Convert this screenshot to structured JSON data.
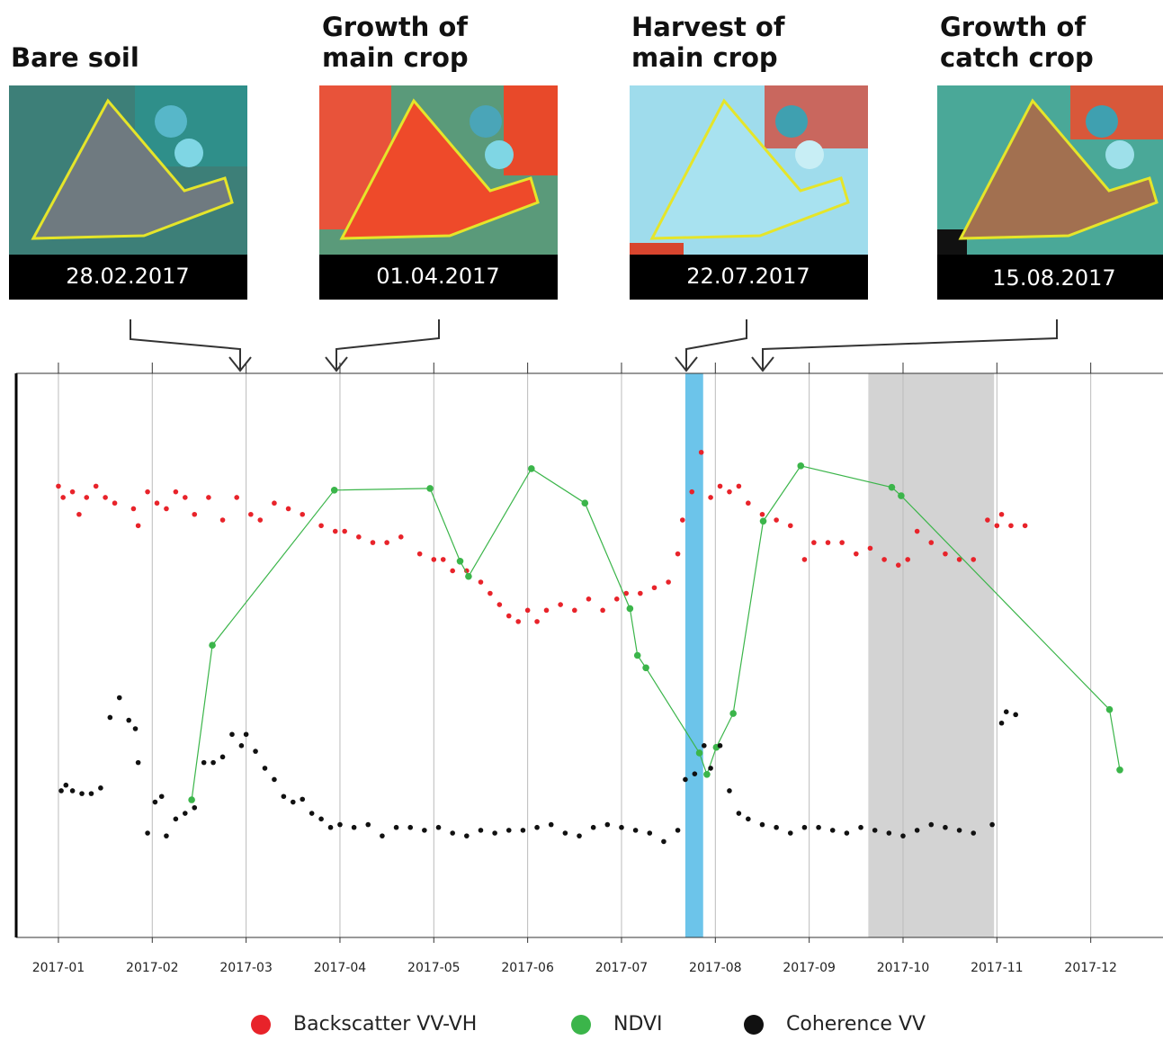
{
  "panels": [
    {
      "title_lines": [
        "Bare soil"
      ],
      "date": "28.02.2017"
    },
    {
      "title_lines": [
        "Growth of",
        "main crop"
      ],
      "date": "01.04.2017"
    },
    {
      "title_lines": [
        "Harvest of",
        "main crop"
      ],
      "date": "22.07.2017"
    },
    {
      "title_lines": [
        "Growth of",
        "catch crop"
      ],
      "date": "15.08.2017"
    }
  ],
  "chart_data": {
    "type": "scatter",
    "xlim": [
      -0.45,
      11.77
    ],
    "ylim": [
      0,
      100
    ],
    "xticks": [
      {
        "value": 0,
        "label": "2017-01"
      },
      {
        "value": 1,
        "label": "2017-02"
      },
      {
        "value": 2,
        "label": "2017-03"
      },
      {
        "value": 3,
        "label": "2017-04"
      },
      {
        "value": 4,
        "label": "2017-05"
      },
      {
        "value": 5,
        "label": "2017-06"
      },
      {
        "value": 6,
        "label": "2017-07"
      },
      {
        "value": 7,
        "label": "2017-08"
      },
      {
        "value": 8,
        "label": "2017-09"
      },
      {
        "value": 9,
        "label": "2017-10"
      },
      {
        "value": 10,
        "label": "2017-11"
      },
      {
        "value": 11,
        "label": "2017-12"
      }
    ],
    "grid": true,
    "bands": [
      {
        "x": [
          6.68,
          6.87
        ],
        "color": "#6cc4ea"
      },
      {
        "x": [
          8.63,
          9.97
        ],
        "color": "#d3d3d3"
      }
    ],
    "series": [
      {
        "name": "Backscatter VV-VH",
        "color": "#e8232a",
        "type": "scatter",
        "x": [
          0.0,
          0.05,
          0.15,
          0.22,
          0.3,
          0.4,
          0.5,
          0.6,
          0.8,
          0.85,
          0.95,
          1.05,
          1.15,
          1.25,
          1.35,
          1.45,
          1.6,
          1.75,
          1.9,
          2.05,
          2.15,
          2.3,
          2.45,
          2.6,
          2.8,
          2.95,
          3.05,
          3.2,
          3.35,
          3.5,
          3.65,
          3.85,
          4.0,
          4.1,
          4.2,
          4.35,
          4.5,
          4.6,
          4.7,
          4.8,
          4.9,
          5.0,
          5.1,
          5.2,
          5.35,
          5.5,
          5.65,
          5.8,
          5.95,
          6.05,
          6.2,
          6.35,
          6.5,
          6.6,
          6.65,
          6.75,
          6.85,
          6.95,
          7.05,
          7.15,
          7.25,
          7.35,
          7.5,
          7.65,
          7.8,
          7.95,
          8.05,
          8.2,
          8.35,
          8.5,
          8.65,
          8.8,
          8.95,
          9.05,
          9.15,
          9.3,
          9.45,
          9.6,
          9.75,
          9.9,
          10.0,
          10.05,
          10.15,
          10.3
        ],
        "values": [
          80,
          78,
          79,
          75,
          78,
          80,
          78,
          77,
          76,
          73,
          79,
          77,
          76,
          79,
          78,
          75,
          78,
          74,
          78,
          75,
          74,
          77,
          76,
          75,
          73,
          72,
          72,
          71,
          70,
          70,
          71,
          68,
          67,
          67,
          65,
          65,
          63,
          61,
          59,
          57,
          56,
          58,
          56,
          58,
          59,
          58,
          60,
          58,
          60,
          61,
          61,
          62,
          63,
          68,
          74,
          79,
          86,
          78,
          80,
          79,
          80,
          77,
          75,
          74,
          73,
          67,
          70,
          70,
          70,
          68,
          69,
          67,
          66,
          67,
          72,
          70,
          68,
          67,
          67,
          74,
          73,
          75,
          73,
          73
        ]
      },
      {
        "name": "NDVI",
        "color": "#3bb54a",
        "type": "line",
        "x": [
          1.42,
          1.64,
          2.94,
          3.96,
          4.28,
          4.37,
          5.04,
          5.61,
          6.09,
          6.17,
          6.26,
          6.83,
          6.91,
          7.01,
          7.19,
          7.51,
          7.91,
          8.88,
          8.98,
          11.2,
          11.31
        ],
        "values": [
          24.4,
          51.8,
          79.3,
          79.6,
          66.7,
          64.0,
          83.1,
          77.0,
          58.3,
          50.0,
          47.8,
          32.7,
          28.9,
          33.7,
          39.7,
          73.8,
          83.6,
          79.8,
          78.3,
          40.4,
          29.7
        ]
      },
      {
        "name": "Coherence VV",
        "color": "#111111",
        "type": "scatter",
        "x": [
          0.03,
          0.08,
          0.15,
          0.25,
          0.35,
          0.45,
          0.55,
          0.65,
          0.75,
          0.82,
          0.85,
          0.95,
          1.03,
          1.1,
          1.15,
          1.25,
          1.35,
          1.45,
          1.55,
          1.65,
          1.75,
          1.85,
          1.95,
          2.0,
          2.1,
          2.2,
          2.3,
          2.4,
          2.5,
          2.6,
          2.7,
          2.8,
          2.9,
          3.0,
          3.15,
          3.3,
          3.45,
          3.6,
          3.75,
          3.9,
          4.05,
          4.2,
          4.35,
          4.5,
          4.65,
          4.8,
          4.95,
          5.1,
          5.25,
          5.4,
          5.55,
          5.7,
          5.85,
          6.0,
          6.15,
          6.3,
          6.45,
          6.6,
          6.68,
          6.78,
          6.88,
          6.95,
          7.05,
          7.15,
          7.25,
          7.35,
          7.5,
          7.65,
          7.8,
          7.95,
          8.1,
          8.25,
          8.4,
          8.55,
          8.7,
          8.85,
          9.0,
          9.15,
          9.3,
          9.45,
          9.6,
          9.75,
          9.95,
          10.05,
          10.1,
          10.2
        ],
        "values": [
          26,
          27,
          26,
          25.5,
          25.5,
          26.5,
          39,
          42.5,
          38.5,
          37,
          31,
          18.5,
          24,
          25,
          18,
          21,
          22,
          23,
          31,
          31,
          32,
          36,
          34,
          36,
          33,
          30,
          28,
          25,
          24,
          24.5,
          22,
          21,
          19.5,
          20,
          19.5,
          20,
          18,
          19.5,
          19.5,
          19,
          19.5,
          18.5,
          18,
          19,
          18.5,
          19,
          19,
          19.5,
          20,
          18.5,
          18,
          19.5,
          20,
          19.5,
          19,
          18.5,
          17,
          19,
          28,
          29,
          34,
          30,
          34,
          26,
          22,
          21,
          20,
          19.5,
          18.5,
          19.5,
          19.5,
          19,
          18.5,
          19.5,
          19,
          18.5,
          18,
          19,
          20,
          19.5,
          19,
          18.5,
          20,
          38,
          40,
          39.5
        ]
      }
    ]
  }
}
